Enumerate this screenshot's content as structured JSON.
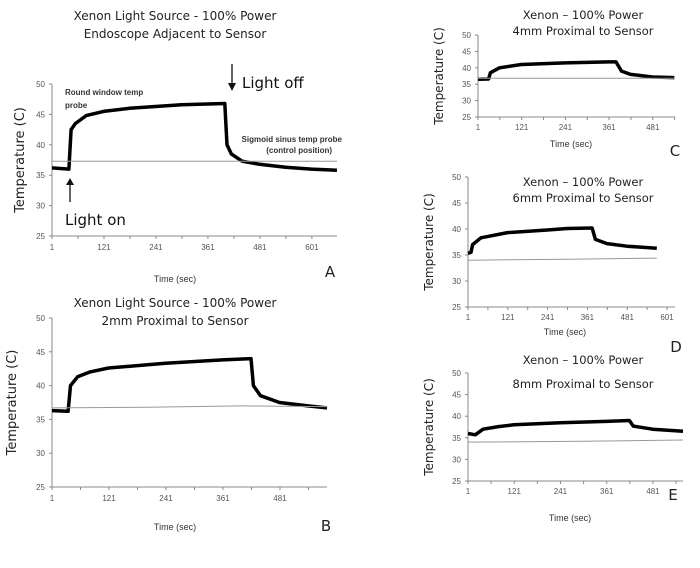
{
  "colors": {
    "probe": "#000000",
    "control": "#999999",
    "axis": "#888888"
  },
  "chart_data": [
    {
      "panel": "A",
      "type": "line",
      "title": [
        "Xenon Light Source - 100% Power",
        "Endoscope Adjacent to Sensor"
      ],
      "xlabel": "Time (sec)",
      "ylabel": "Temperature (C)",
      "xticks": [
        1,
        121,
        241,
        361,
        481,
        601
      ],
      "yticks": [
        25,
        30,
        35,
        40,
        45,
        50
      ],
      "xlim": [
        1,
        659
      ],
      "ylim": [
        25,
        50
      ],
      "grid": false,
      "annotations": {
        "round_window": [
          "Round window temp",
          "probe"
        ],
        "sigmoid": [
          "Sigmoid sinus temp probe",
          "(control position)"
        ],
        "light_on": "Light on",
        "light_off": "Light off"
      },
      "series": [
        {
          "role": "probe",
          "points": [
            [
              1,
              36.2
            ],
            [
              40,
              36
            ],
            [
              45,
              42.5
            ],
            [
              55,
              43.5
            ],
            [
              80,
              44.8
            ],
            [
              120,
              45.5
            ],
            [
              180,
              46
            ],
            [
              240,
              46.3
            ],
            [
              300,
              46.6
            ],
            [
              400,
              46.8
            ],
            [
              405,
              40
            ],
            [
              415,
              38.5
            ],
            [
              440,
              37.3
            ],
            [
              480,
              36.8
            ],
            [
              540,
              36.3
            ],
            [
              600,
              36
            ],
            [
              659,
              35.8
            ]
          ]
        },
        {
          "role": "control",
          "points": [
            [
              1,
              37.3
            ],
            [
              659,
              37.3
            ]
          ]
        }
      ]
    },
    {
      "panel": "B",
      "type": "line",
      "title": [
        "Xenon Light Source - 100% Power",
        "2mm Proximal to Sensor"
      ],
      "xlabel": "Time (sec)",
      "ylabel": "Temperature (C)",
      "xticks": [
        1,
        121,
        241,
        361,
        481
      ],
      "yticks": [
        25,
        30,
        35,
        40,
        45,
        50
      ],
      "xlim": [
        1,
        580
      ],
      "ylim": [
        25,
        50
      ],
      "grid": false,
      "series": [
        {
          "role": "probe",
          "points": [
            [
              1,
              36.3
            ],
            [
              35,
              36.2
            ],
            [
              40,
              40
            ],
            [
              55,
              41.3
            ],
            [
              80,
              42
            ],
            [
              120,
              42.6
            ],
            [
              240,
              43.3
            ],
            [
              360,
              43.8
            ],
            [
              420,
              44
            ],
            [
              425,
              40
            ],
            [
              440,
              38.5
            ],
            [
              480,
              37.5
            ],
            [
              540,
              37
            ],
            [
              580,
              36.7
            ]
          ]
        },
        {
          "role": "control",
          "points": [
            [
              1,
              36.7
            ],
            [
              200,
              36.8
            ],
            [
              400,
              37
            ],
            [
              580,
              36.9
            ]
          ]
        }
      ]
    },
    {
      "panel": "C",
      "type": "line",
      "title": [
        "Xenon – 100% Power",
        "4mm Proximal to Sensor"
      ],
      "xlabel": "Time (sec)",
      "ylabel": "Temperature (C)",
      "xticks": [
        1,
        121,
        241,
        361,
        481
      ],
      "yticks": [
        25,
        30,
        35,
        40,
        45,
        50
      ],
      "xlim": [
        1,
        542
      ],
      "ylim": [
        25,
        50
      ],
      "grid": false,
      "series": [
        {
          "role": "probe",
          "points": [
            [
              1,
              36.5
            ],
            [
              30,
              36.6
            ],
            [
              35,
              38.5
            ],
            [
              60,
              40
            ],
            [
              120,
              41
            ],
            [
              240,
              41.5
            ],
            [
              360,
              41.8
            ],
            [
              380,
              41.8
            ],
            [
              395,
              39
            ],
            [
              420,
              38
            ],
            [
              480,
              37.2
            ],
            [
              540,
              37
            ]
          ]
        },
        {
          "role": "control",
          "points": [
            [
              1,
              36.8
            ],
            [
              542,
              36.8
            ]
          ]
        }
      ]
    },
    {
      "panel": "D",
      "type": "line",
      "title": [
        "Xenon – 100% Power",
        "6mm Proximal to Sensor"
      ],
      "xlabel": "Time (sec)",
      "ylabel": "Temperature (C)",
      "xticks": [
        1,
        121,
        241,
        361,
        481,
        601
      ],
      "yticks": [
        25,
        30,
        35,
        40,
        45,
        50
      ],
      "xlim": [
        1,
        625
      ],
      "ylim": [
        25,
        50
      ],
      "grid": false,
      "series": [
        {
          "role": "probe",
          "points": [
            [
              1,
              35.3
            ],
            [
              10,
              35.5
            ],
            [
              15,
              37
            ],
            [
              40,
              38.3
            ],
            [
              120,
              39.3
            ],
            [
              240,
              39.8
            ],
            [
              300,
              40.1
            ],
            [
              375,
              40.2
            ],
            [
              385,
              38
            ],
            [
              420,
              37.2
            ],
            [
              480,
              36.7
            ],
            [
              570,
              36.3
            ]
          ]
        },
        {
          "role": "control",
          "points": [
            [
              1,
              34
            ],
            [
              300,
              34.2
            ],
            [
              570,
              34.4
            ]
          ]
        }
      ]
    },
    {
      "panel": "E",
      "type": "line",
      "title": [
        "Xenon – 100% Power",
        "8mm Proximal to Sensor"
      ],
      "xlabel": "Time (sec)",
      "ylabel": "Temperature (C)",
      "xticks": [
        1,
        121,
        241,
        361,
        481
      ],
      "yticks": [
        25,
        30,
        35,
        40,
        45,
        50
      ],
      "xlim": [
        1,
        559
      ],
      "ylim": [
        25,
        50
      ],
      "grid": false,
      "series": [
        {
          "role": "probe",
          "points": [
            [
              1,
              36
            ],
            [
              20,
              35.7
            ],
            [
              40,
              37
            ],
            [
              80,
              37.6
            ],
            [
              120,
              38
            ],
            [
              240,
              38.5
            ],
            [
              360,
              38.8
            ],
            [
              420,
              39
            ],
            [
              430,
              37.7
            ],
            [
              480,
              37
            ],
            [
              559,
              36.5
            ]
          ]
        },
        {
          "role": "control",
          "points": [
            [
              1,
              34
            ],
            [
              300,
              34.2
            ],
            [
              559,
              34.5
            ]
          ]
        }
      ]
    }
  ]
}
